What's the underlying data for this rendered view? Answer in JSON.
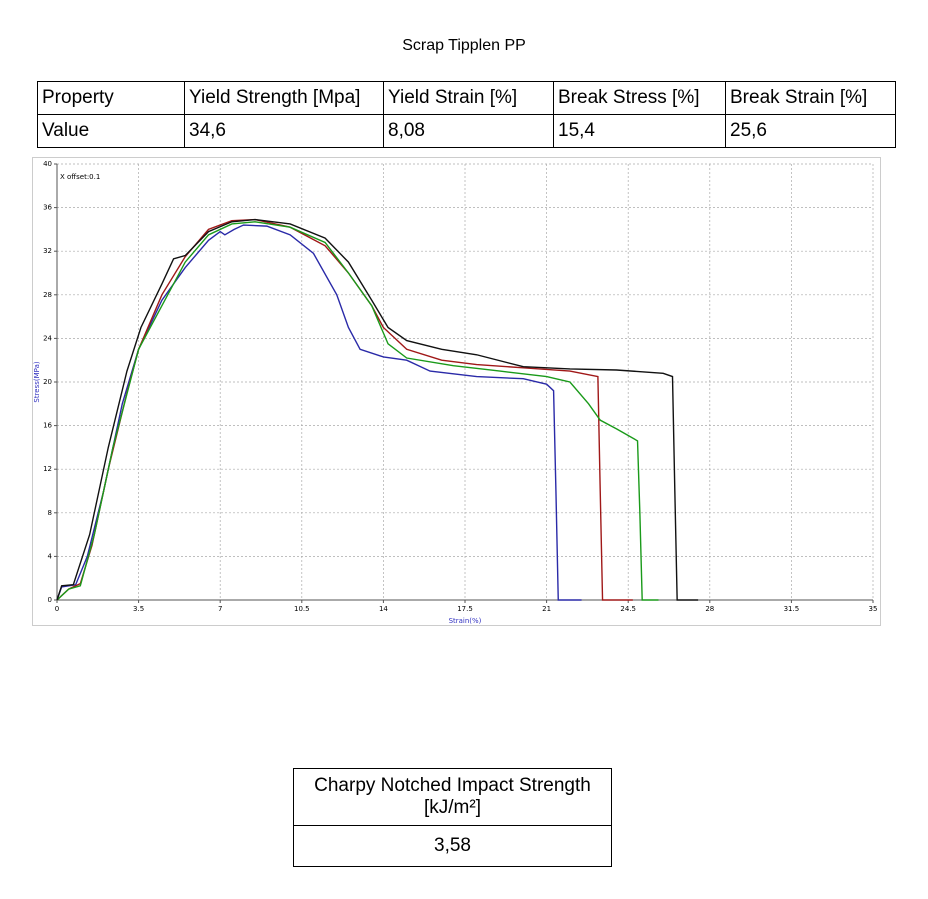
{
  "title": "Scrap Tipplen PP",
  "table": {
    "rows": [
      [
        "Property",
        "Yield Strength [Mpa]",
        "Yield Strain [%]",
        "Break Stress [%]",
        "Break Strain [%]"
      ],
      [
        "Value",
        "34,6",
        "8,08",
        "15,4",
        "25,6"
      ]
    ]
  },
  "chart_data": {
    "type": "line",
    "annotation": "X offset:0.1",
    "x_label": "Strain(%)",
    "y_label": "Stress(MPa)",
    "xlim": [
      0,
      35
    ],
    "xticks": [
      0,
      3.5,
      7,
      10.5,
      14,
      17.5,
      21,
      24.5,
      28,
      31.5,
      35
    ],
    "ylim": [
      0,
      40
    ],
    "yticks": [
      0,
      4,
      8,
      12,
      16,
      20,
      24,
      28,
      32,
      36,
      40
    ],
    "grid": true,
    "series": [
      {
        "color": "#2a2aa8",
        "x": [
          0,
          0.2,
          0.8,
          1.3,
          2,
          2.8,
          3.5,
          4.5,
          5.5,
          6.5,
          7,
          7.2,
          7.6,
          8,
          9,
          10,
          11,
          12,
          12.5,
          13,
          14,
          15,
          16,
          18,
          20,
          21,
          21.3,
          21.4,
          21.5,
          22.5
        ],
        "values": [
          0,
          1.2,
          1.4,
          4,
          10,
          18,
          23,
          27.5,
          30.5,
          33,
          33.8,
          33.5,
          34,
          34.4,
          34.3,
          33.5,
          31.8,
          28,
          25,
          23,
          22.3,
          22,
          21,
          20.5,
          20.3,
          19.8,
          19.2,
          10,
          0,
          0
        ]
      },
      {
        "color": "#a01818",
        "x": [
          0,
          0.5,
          1,
          1.5,
          2.2,
          3,
          3.5,
          4.5,
          5.5,
          6.5,
          7.5,
          8.5,
          10,
          11.5,
          12.5,
          13.5,
          14,
          15,
          16.5,
          18,
          20,
          22,
          23.2,
          23.3,
          23.4,
          24.7
        ],
        "values": [
          0,
          1,
          1.5,
          5,
          12,
          19,
          23,
          28,
          31.5,
          34,
          34.8,
          34.9,
          34.2,
          32.5,
          30,
          27,
          25,
          23,
          22,
          21.6,
          21.3,
          21,
          20.5,
          10,
          0,
          0
        ]
      },
      {
        "color": "#1a9a1a",
        "x": [
          0,
          0.5,
          1,
          1.6,
          2.4,
          3.5,
          4.5,
          5.5,
          6.5,
          7.5,
          8.5,
          10,
          11.5,
          12.5,
          13.5,
          14.2,
          15,
          17,
          19,
          21,
          22,
          22.8,
          23.3,
          24,
          24.9,
          25,
          25.1,
          25.8
        ],
        "values": [
          0,
          1,
          1.3,
          6,
          14,
          23,
          27,
          31,
          33.5,
          34.5,
          34.7,
          34.2,
          32.8,
          30,
          27,
          23.5,
          22.2,
          21.5,
          21,
          20.5,
          20,
          18,
          16.5,
          15.7,
          14.6,
          8,
          0,
          0
        ]
      },
      {
        "color": "#111111",
        "x": [
          0,
          0.2,
          0.7,
          1.4,
          2.2,
          3,
          3.6,
          4.5,
          5,
          5.5,
          6.5,
          7.5,
          8.5,
          10,
          11.5,
          12.5,
          13.5,
          14.2,
          15,
          16.5,
          18,
          20,
          22,
          24,
          26,
          26.4,
          26.5,
          26.6,
          27.5
        ],
        "values": [
          0,
          1.3,
          1.4,
          6,
          14,
          21,
          25,
          29,
          31.3,
          31.6,
          33.8,
          34.7,
          34.9,
          34.5,
          33.2,
          31,
          27.5,
          25,
          23.8,
          23,
          22.5,
          21.4,
          21.2,
          21.1,
          20.8,
          20.5,
          10,
          0,
          0
        ]
      }
    ]
  },
  "impact_table": {
    "header": "Charpy Notched Impact Strength [kJ/m²]",
    "value": "3,58"
  }
}
